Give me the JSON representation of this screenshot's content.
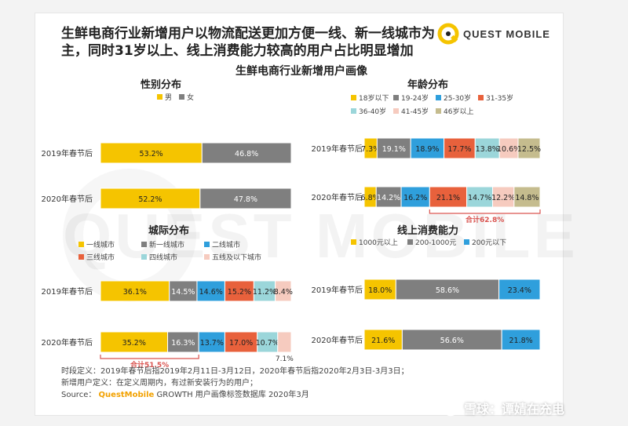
{
  "headline": "生鲜电商行业新增用户以物流配送更加方便一线、新一线城市为主，同时31岁以上、线上消费能力较高的用户占比明显增加",
  "logo": {
    "text": "QUEST MOBILE",
    "icon": "quest-mobile-logo-icon"
  },
  "center_title": "生鲜电商行业新增用户画像",
  "watermark_text": "QUEST MOBILE",
  "colors": {
    "yellow": "#f5c400",
    "gray": "#7f7f7f",
    "blue": "#2f9fdc",
    "red": "#e8613c",
    "teal": "#9bd6da",
    "pink": "#f6cbbf",
    "olive": "#c5bc8e",
    "white": "#ffffff",
    "annot": "#d9534f"
  },
  "chart_data": [
    {
      "type": "bar",
      "stacked": true,
      "orientation": "horizontal",
      "title": "性别分布",
      "categories": [
        "2019年春节后",
        "2020年春节后"
      ],
      "legend_position": "top",
      "series": [
        {
          "name": "男",
          "color": "#f5c400",
          "values": [
            53.2,
            52.2
          ]
        },
        {
          "name": "女",
          "color": "#7f7f7f",
          "values": [
            46.8,
            47.8
          ]
        }
      ]
    },
    {
      "type": "bar",
      "stacked": true,
      "orientation": "horizontal",
      "title": "年龄分布",
      "categories": [
        "2019年春节后",
        "2020年春节后"
      ],
      "legend_position": "top",
      "series": [
        {
          "name": "18岁以下",
          "color": "#f5c400",
          "values": [
            7.3,
            6.8
          ]
        },
        {
          "name": "19-24岁",
          "color": "#7f7f7f",
          "values": [
            19.1,
            14.2
          ]
        },
        {
          "name": "25-30岁",
          "color": "#2f9fdc",
          "values": [
            18.9,
            16.2
          ]
        },
        {
          "name": "31-35岁",
          "color": "#e8613c",
          "values": [
            17.7,
            21.1
          ]
        },
        {
          "name": "36-40岁",
          "color": "#9bd6da",
          "values": [
            13.8,
            14.7
          ]
        },
        {
          "name": "41-45岁",
          "color": "#f6cbbf",
          "values": [
            10.6,
            12.2
          ]
        },
        {
          "name": "46岁以上",
          "color": "#c5bc8e",
          "values": [
            12.5,
            14.8
          ]
        }
      ],
      "annotation": {
        "text": "合计62.8%",
        "category": "2020年春节后",
        "from_series": 3,
        "to_series": 6
      }
    },
    {
      "type": "bar",
      "stacked": true,
      "orientation": "horizontal",
      "title": "城际分布",
      "categories": [
        "2019年春节后",
        "2020年春节后"
      ],
      "legend_position": "top",
      "series": [
        {
          "name": "一线城市",
          "color": "#f5c400",
          "values": [
            36.1,
            35.2
          ]
        },
        {
          "name": "新一线城市",
          "color": "#7f7f7f",
          "values": [
            14.5,
            16.3
          ]
        },
        {
          "name": "二线城市",
          "color": "#2f9fdc",
          "values": [
            14.6,
            13.7
          ]
        },
        {
          "name": "三线城市",
          "color": "#e8613c",
          "values": [
            15.2,
            17.0
          ]
        },
        {
          "name": "四线城市",
          "color": "#9bd6da",
          "values": [
            11.2,
            10.7
          ]
        },
        {
          "name": "五线及以下城市",
          "color": "#f6cbbf",
          "values": [
            8.4,
            7.1
          ]
        }
      ],
      "annotation": {
        "text": "合计51.5%",
        "category": "2020年春节后",
        "from_series": 0,
        "to_series": 1
      }
    },
    {
      "type": "bar",
      "stacked": true,
      "orientation": "horizontal",
      "title": "线上消费能力",
      "categories": [
        "2019年春节后",
        "2020年春节后"
      ],
      "legend_position": "top",
      "series": [
        {
          "name": "1000元以上",
          "color": "#f5c400",
          "values": [
            18.0,
            21.6
          ]
        },
        {
          "name": "200-1000元",
          "color": "#7f7f7f",
          "values": [
            58.6,
            56.6
          ]
        },
        {
          "name": "200元以下",
          "color": "#2f9fdc",
          "values": [
            23.4,
            21.8
          ]
        }
      ]
    }
  ],
  "footer": {
    "line1": "时段定义：2019年春节后指2019年2月11日-3月12日，2020年春节后指2020年2月3日-3月3日；",
    "line2": "新增用户定义：在定义周期内，有过新安装行为的用户；",
    "source_label": "Source：",
    "source_brand": "QuestMobile",
    "source_rest": " GROWTH 用户画像标签数据库 2020年3月"
  },
  "xueqiu": {
    "text": "雪球：谭婧在充电",
    "icon": "snowball-logo-icon"
  }
}
